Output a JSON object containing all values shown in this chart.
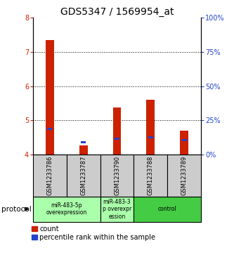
{
  "title": "GDS5347 / 1569954_at",
  "samples": [
    "GSM1233786",
    "GSM1233787",
    "GSM1233790",
    "GSM1233788",
    "GSM1233789"
  ],
  "red_tops": [
    7.35,
    4.25,
    5.38,
    5.6,
    4.7
  ],
  "red_bottoms": [
    4.0,
    4.0,
    4.0,
    4.0,
    4.0
  ],
  "blue_values": [
    4.75,
    4.35,
    4.46,
    4.5,
    4.42
  ],
  "ylim": [
    4.0,
    8.0
  ],
  "yticks": [
    4,
    5,
    6,
    7,
    8
  ],
  "right_yticks": [
    0,
    25,
    50,
    75,
    100
  ],
  "bar_color": "#cc2200",
  "blue_color": "#2244cc",
  "sample_bg": "#cccccc",
  "protocol_groups": [
    {
      "label": "miR-483-5p\noverexpression",
      "start": 0,
      "end": 2,
      "color": "#aaffaa"
    },
    {
      "label": "miR-483-3\np overexpr\nession",
      "start": 2,
      "end": 3,
      "color": "#aaffaa"
    },
    {
      "label": "control",
      "start": 3,
      "end": 5,
      "color": "#44cc44"
    }
  ],
  "bar_width": 0.25,
  "title_fontsize": 10,
  "tick_fontsize": 7,
  "legend_fontsize": 7
}
